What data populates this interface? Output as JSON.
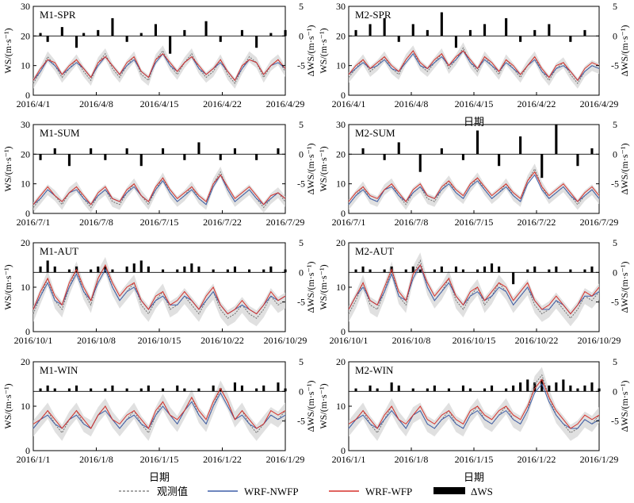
{
  "chart_data": [
    {
      "type": "line",
      "title": "M1-SPR",
      "xlabel": "",
      "ylabel": "WS/(m·s⁻¹)",
      "y2label": "ΔWS/(m·s⁻¹)",
      "ylim": [
        0,
        30
      ],
      "y2lim": [
        -10,
        5
      ],
      "x_ticks": [
        "2016/4/1",
        "2016/4/8",
        "2016/4/15",
        "2016/4/22",
        "2016/4/29"
      ],
      "y_ticks": [
        "0",
        "10",
        "20",
        "30"
      ],
      "y2_ticks": [
        "5",
        "0",
        "-5"
      ],
      "obs": [
        4,
        8,
        13,
        10,
        6,
        9,
        12,
        8,
        5,
        11,
        14,
        9,
        6,
        10,
        13,
        7,
        5,
        12,
        15,
        10,
        7,
        11,
        14,
        9,
        6,
        8,
        12,
        7,
        4,
        9,
        13,
        11,
        6,
        10,
        12,
        8
      ],
      "nwfp": [
        5,
        8,
        12,
        10,
        7,
        9,
        11,
        9,
        6,
        10,
        13,
        10,
        7,
        10,
        12,
        8,
        6,
        11,
        14,
        10,
        8,
        11,
        13,
        9,
        7,
        9,
        11,
        8,
        5,
        9,
        12,
        11,
        7,
        10,
        11,
        9
      ],
      "wfp": [
        5,
        9,
        12,
        11,
        7,
        10,
        12,
        9,
        6,
        11,
        13,
        10,
        7,
        11,
        13,
        8,
        6,
        12,
        14,
        11,
        8,
        11,
        13,
        10,
        7,
        9,
        12,
        8,
        5,
        10,
        12,
        11,
        7,
        10,
        12,
        9
      ],
      "dws": [
        0,
        0.5,
        -1,
        0,
        1.5,
        0,
        -2,
        0.5,
        0,
        1,
        0,
        3,
        0,
        -1,
        0,
        0.5,
        0,
        2,
        0,
        -3,
        0,
        1,
        0,
        0,
        2.5,
        0,
        -1,
        0,
        0,
        1,
        0,
        -2,
        0,
        0.5,
        0,
        1
      ]
    },
    {
      "type": "line",
      "title": "M2-SPR",
      "xlabel": "日期",
      "ylabel": "WS/(m·s⁻¹)",
      "y2label": "ΔWS/(m·s⁻¹)",
      "ylim": [
        0,
        30
      ],
      "y2lim": [
        -10,
        5
      ],
      "x_ticks": [
        "2016/4/1",
        "2016/4/8",
        "2016/4/15",
        "2016/4/22",
        "2016/4/29"
      ],
      "y_ticks": [
        "0",
        "10",
        "20",
        "30"
      ],
      "y2_ticks": [
        "5",
        "0",
        "-5"
      ],
      "obs": [
        6,
        9,
        12,
        8,
        10,
        13,
        9,
        7,
        12,
        15,
        10,
        8,
        11,
        14,
        9,
        12,
        16,
        11,
        8,
        13,
        10,
        7,
        12,
        9,
        6,
        10,
        13,
        8,
        5,
        9,
        11,
        7,
        4,
        8,
        10,
        9
      ],
      "nwfp": [
        7,
        9,
        11,
        9,
        10,
        12,
        9,
        8,
        11,
        14,
        10,
        9,
        11,
        13,
        10,
        12,
        15,
        11,
        9,
        12,
        10,
        8,
        11,
        9,
        7,
        10,
        12,
        8,
        6,
        9,
        10,
        8,
        5,
        8,
        10,
        9
      ],
      "wfp": [
        7,
        10,
        12,
        9,
        11,
        13,
        10,
        8,
        12,
        15,
        11,
        9,
        12,
        14,
        10,
        13,
        15,
        12,
        9,
        13,
        11,
        8,
        12,
        10,
        7,
        10,
        13,
        9,
        6,
        10,
        11,
        8,
        5,
        9,
        11,
        10
      ],
      "dws": [
        0,
        1,
        0,
        2,
        0,
        3,
        0,
        -1,
        0,
        2,
        0,
        1,
        0,
        4,
        0,
        -2,
        0,
        1,
        0,
        2,
        0,
        0,
        3,
        0,
        -1,
        0,
        1,
        0,
        2,
        0,
        0,
        -1,
        0,
        1,
        0,
        0
      ]
    },
    {
      "type": "line",
      "title": "M1-SUM",
      "xlabel": "",
      "ylabel": "WS/(m·s⁻¹)",
      "y2label": "ΔWS/(m·s⁻¹)",
      "ylim": [
        0,
        30
      ],
      "y2lim": [
        -10,
        5
      ],
      "x_ticks": [
        "2016/7/1",
        "2016/7/8",
        "2016/7/15",
        "2016/7/22",
        "2016/7/29"
      ],
      "y_ticks": [
        "0",
        "10",
        "20",
        "30"
      ],
      "y2_ticks": [
        "5",
        "0",
        "-5"
      ],
      "obs": [
        2,
        5,
        8,
        6,
        3,
        7,
        9,
        5,
        2,
        6,
        8,
        4,
        3,
        7,
        10,
        6,
        3,
        8,
        12,
        7,
        4,
        6,
        9,
        5,
        3,
        10,
        14,
        8,
        4,
        6,
        8,
        5,
        2,
        5,
        7,
        4
      ],
      "nwfp": [
        3,
        5,
        8,
        6,
        4,
        7,
        8,
        5,
        3,
        6,
        8,
        5,
        4,
        7,
        9,
        6,
        4,
        8,
        11,
        7,
        4,
        6,
        8,
        5,
        3,
        9,
        13,
        8,
        4,
        6,
        8,
        5,
        3,
        5,
        7,
        5
      ],
      "wfp": [
        3,
        6,
        9,
        6,
        4,
        7,
        9,
        6,
        3,
        7,
        9,
        5,
        4,
        8,
        10,
        6,
        4,
        9,
        12,
        8,
        5,
        7,
        9,
        6,
        4,
        10,
        13,
        9,
        5,
        7,
        9,
        6,
        3,
        6,
        7,
        5
      ],
      "dws": [
        0,
        -1,
        0,
        1,
        0,
        -2,
        0,
        0,
        1,
        0,
        -1,
        0,
        0,
        1,
        0,
        -2,
        0,
        0,
        1,
        0,
        0,
        -1,
        0,
        2,
        0,
        0,
        -1,
        0,
        1,
        0,
        0,
        -1,
        0,
        0,
        1,
        0
      ]
    },
    {
      "type": "line",
      "title": "M2-SUM",
      "xlabel": "",
      "ylabel": "WS/(m·s⁻¹)",
      "y2label": "ΔWS/(m·s⁻¹)",
      "ylim": [
        0,
        30
      ],
      "y2lim": [
        -10,
        5
      ],
      "x_ticks": [
        "2016/7/1",
        "2016/7/8",
        "2016/7/15",
        "2016/7/22",
        "2016/7/29"
      ],
      "y_ticks": [
        "0",
        "10",
        "20",
        "30"
      ],
      "y2_ticks": [
        "5",
        "0",
        "-5"
      ],
      "obs": [
        3,
        6,
        9,
        5,
        4,
        8,
        10,
        6,
        3,
        7,
        9,
        5,
        4,
        8,
        11,
        7,
        5,
        9,
        12,
        8,
        5,
        7,
        10,
        6,
        4,
        11,
        15,
        9,
        5,
        7,
        9,
        6,
        3,
        6,
        8,
        5
      ],
      "nwfp": [
        3,
        6,
        8,
        5,
        4,
        8,
        9,
        6,
        4,
        7,
        9,
        6,
        5,
        8,
        10,
        7,
        5,
        9,
        11,
        8,
        5,
        7,
        9,
        6,
        4,
        10,
        13,
        8,
        5,
        7,
        9,
        6,
        4,
        6,
        8,
        5
      ],
      "wfp": [
        4,
        7,
        9,
        6,
        5,
        8,
        10,
        7,
        4,
        8,
        10,
        6,
        5,
        9,
        11,
        8,
        6,
        10,
        12,
        9,
        6,
        8,
        10,
        7,
        5,
        11,
        14,
        9,
        6,
        8,
        10,
        7,
        4,
        7,
        9,
        6
      ],
      "dws": [
        0,
        0,
        1,
        0,
        0,
        -1,
        0,
        2,
        0,
        0,
        -3,
        0,
        0,
        1,
        0,
        0,
        -1,
        0,
        4,
        0,
        0,
        -2,
        0,
        0,
        3,
        0,
        0,
        -4,
        0,
        5,
        0,
        0,
        -2,
        0,
        1,
        0
      ]
    },
    {
      "type": "line",
      "title": "M1-AUT",
      "xlabel": "",
      "ylabel": "WS/(m·s⁻¹)",
      "y2label": "ΔWS/(m·s⁻¹)",
      "ylim": [
        0,
        20
      ],
      "y2lim": [
        -10,
        5
      ],
      "x_ticks": [
        "2016/10/1",
        "2016/10/8",
        "2016/10/15",
        "2016/10/22",
        "2016/10/29"
      ],
      "y_ticks": [
        "0",
        "10",
        "20"
      ],
      "y2_ticks": [
        "5",
        "0",
        "-5"
      ],
      "obs": [
        4,
        8,
        12,
        7,
        5,
        10,
        14,
        9,
        6,
        12,
        15,
        10,
        7,
        9,
        11,
        6,
        4,
        7,
        9,
        5,
        6,
        8,
        6,
        4,
        7,
        9,
        5,
        3,
        4,
        6,
        4,
        3,
        5,
        8,
        6,
        7
      ],
      "nwfp": [
        5,
        8,
        11,
        7,
        6,
        10,
        13,
        9,
        7,
        11,
        14,
        10,
        7,
        9,
        10,
        7,
        5,
        7,
        8,
        6,
        6,
        8,
        7,
        5,
        7,
        9,
        6,
        4,
        5,
        6,
        5,
        4,
        6,
        8,
        7,
        8
      ],
      "wfp": [
        5,
        9,
        12,
        8,
        6,
        11,
        14,
        10,
        7,
        12,
        15,
        11,
        8,
        10,
        11,
        7,
        5,
        8,
        9,
        6,
        7,
        9,
        7,
        5,
        8,
        10,
        6,
        4,
        5,
        7,
        5,
        4,
        6,
        9,
        7,
        8
      ],
      "dws": [
        0,
        1,
        2,
        1,
        0,
        0.5,
        1,
        0,
        0.5,
        1,
        1,
        0.5,
        0,
        1,
        1.5,
        2,
        1,
        0,
        0.5,
        0,
        0.5,
        1,
        1.5,
        1,
        0,
        0.5,
        0,
        0.5,
        1,
        0,
        0.5,
        0,
        0.5,
        1,
        0,
        0.5
      ]
    },
    {
      "type": "line",
      "title": "M2-AUT",
      "xlabel": "",
      "ylabel": "WS/(m·s⁻¹)",
      "y2label": "ΔWS/(m·s⁻¹)",
      "ylim": [
        0,
        20
      ],
      "y2lim": [
        -10,
        5
      ],
      "x_ticks": [
        "2016/10/1",
        "2016/10/8",
        "2016/10/15",
        "2016/10/22",
        "2016/10/29"
      ],
      "y_ticks": [
        "0",
        "10",
        "20"
      ],
      "y2_ticks": [
        "5",
        "0",
        "-5"
      ],
      "obs": [
        4,
        7,
        11,
        6,
        5,
        9,
        14,
        8,
        6,
        13,
        16,
        10,
        7,
        9,
        12,
        7,
        5,
        8,
        10,
        6,
        8,
        11,
        9,
        6,
        8,
        10,
        6,
        4,
        5,
        7,
        5,
        3,
        5,
        8,
        7,
        9
      ],
      "nwfp": [
        5,
        8,
        10,
        7,
        6,
        9,
        13,
        8,
        7,
        12,
        15,
        10,
        7,
        9,
        11,
        8,
        6,
        8,
        9,
        7,
        8,
        10,
        9,
        6,
        8,
        10,
        7,
        5,
        5,
        7,
        6,
        4,
        6,
        8,
        8,
        9
      ],
      "wfp": [
        5,
        8,
        11,
        7,
        6,
        10,
        14,
        9,
        7,
        13,
        15,
        11,
        8,
        10,
        12,
        8,
        6,
        9,
        10,
        7,
        9,
        11,
        10,
        7,
        9,
        11,
        7,
        5,
        6,
        8,
        6,
        4,
        6,
        9,
        8,
        10
      ],
      "dws": [
        0,
        0.5,
        1,
        0.5,
        0,
        0.5,
        1,
        0,
        0.5,
        1,
        0.5,
        0,
        0.5,
        1,
        0,
        1,
        0.5,
        0,
        0.5,
        1,
        1.5,
        1,
        0,
        -2,
        0,
        0.5,
        1,
        0,
        0.5,
        1,
        0,
        0.5,
        0,
        0.5,
        1,
        0
      ]
    },
    {
      "type": "line",
      "title": "M1-WIN",
      "xlabel": "日期",
      "ylabel": "WS/(m·s⁻¹)",
      "y2label": "ΔWS/(m·s⁻¹)",
      "ylim": [
        0,
        20
      ],
      "y2lim": [
        -10,
        5
      ],
      "x_ticks": [
        "2016/1/1",
        "2016/1/8",
        "2016/1/15",
        "2016/1/22",
        "2016/1/29"
      ],
      "y_ticks": [
        "0",
        "10",
        "20"
      ],
      "y2_ticks": [
        "5",
        "0",
        "-5"
      ],
      "obs": [
        5,
        7,
        9,
        6,
        4,
        7,
        9,
        6,
        5,
        8,
        10,
        7,
        5,
        7,
        9,
        6,
        4,
        8,
        11,
        8,
        6,
        9,
        12,
        8,
        6,
        10,
        14,
        11,
        7,
        9,
        6,
        4,
        6,
        8,
        7,
        9
      ],
      "nwfp": [
        5,
        7,
        8,
        6,
        5,
        7,
        8,
        6,
        5,
        8,
        9,
        7,
        5,
        7,
        8,
        6,
        5,
        8,
        10,
        8,
        6,
        9,
        11,
        8,
        6,
        10,
        13,
        10,
        7,
        8,
        6,
        5,
        6,
        8,
        7,
        8
      ],
      "wfp": [
        6,
        7,
        9,
        7,
        5,
        7,
        9,
        7,
        5,
        8,
        10,
        7,
        6,
        8,
        9,
        7,
        5,
        9,
        11,
        8,
        7,
        9,
        12,
        9,
        7,
        11,
        14,
        11,
        7,
        9,
        7,
        5,
        6,
        9,
        8,
        9
      ],
      "dws": [
        0,
        0.5,
        1,
        0.5,
        0,
        0.5,
        1,
        0,
        0.5,
        0,
        0.5,
        1,
        0,
        0.5,
        0,
        0.5,
        1,
        0,
        0.5,
        0,
        1,
        0.5,
        0,
        0.5,
        0,
        1,
        0.5,
        0,
        1.5,
        1,
        0,
        0.5,
        1,
        0,
        1.5,
        0.5
      ]
    },
    {
      "type": "line",
      "title": "M2-WIN",
      "xlabel": "日期",
      "ylabel": "WS/(m·s⁻¹)",
      "y2label": "ΔWS/(m·s⁻¹)",
      "ylim": [
        0,
        20
      ],
      "y2lim": [
        -10,
        5
      ],
      "x_ticks": [
        "2016/1/1",
        "2016/1/8",
        "2016/1/15",
        "2016/1/22",
        "2016/1/29"
      ],
      "y_ticks": [
        "0",
        "10",
        "20"
      ],
      "y2_ticks": [
        "5",
        "0",
        "-5"
      ],
      "obs": [
        5,
        7,
        9,
        6,
        4,
        7,
        10,
        7,
        5,
        8,
        9,
        6,
        5,
        7,
        9,
        6,
        5,
        8,
        10,
        7,
        6,
        8,
        10,
        7,
        6,
        9,
        15,
        17,
        12,
        8,
        6,
        4,
        5,
        7,
        6,
        8
      ],
      "nwfp": [
        5,
        7,
        8,
        6,
        5,
        7,
        9,
        7,
        5,
        8,
        9,
        6,
        5,
        7,
        8,
        6,
        5,
        8,
        9,
        7,
        6,
        8,
        9,
        7,
        6,
        9,
        13,
        15,
        11,
        8,
        6,
        5,
        5,
        7,
        6,
        7
      ],
      "wfp": [
        6,
        7,
        9,
        7,
        5,
        8,
        10,
        7,
        6,
        8,
        10,
        7,
        6,
        8,
        9,
        7,
        6,
        9,
        10,
        8,
        7,
        9,
        10,
        8,
        7,
        10,
        14,
        16,
        12,
        9,
        7,
        5,
        6,
        8,
        7,
        8
      ],
      "dws": [
        0,
        0.5,
        0,
        1,
        0.5,
        0,
        1.5,
        1,
        0,
        0.5,
        0,
        0.5,
        1,
        0,
        0.5,
        0,
        1,
        0.5,
        0,
        0.5,
        1,
        0,
        0.5,
        1,
        1.5,
        2,
        1.5,
        2,
        1,
        1.5,
        2,
        1,
        0.5,
        1,
        1.5,
        0.5
      ]
    }
  ],
  "legend": {
    "obs_label": "观测值",
    "nwfp_label": "WRF-NWFP",
    "wfp_label": "WRF-WFP",
    "dws_label": "ΔWS"
  },
  "colors": {
    "obs": "#707070",
    "band": "#d8d8d8",
    "nwfp": "#3f5fa8",
    "wfp": "#d6312b",
    "dws": "#000000",
    "axis": "#000000"
  }
}
